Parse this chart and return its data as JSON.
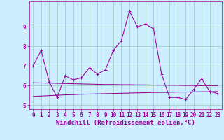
{
  "xlabel": "Windchill (Refroidissement éolien,°C)",
  "background_color": "#cceeff",
  "line_color": "#990099",
  "x": [
    0,
    1,
    2,
    3,
    4,
    5,
    6,
    7,
    8,
    9,
    10,
    11,
    12,
    13,
    14,
    15,
    16,
    17,
    18,
    19,
    20,
    21,
    22,
    23
  ],
  "line1": [
    7.0,
    7.8,
    6.2,
    5.4,
    6.5,
    6.3,
    6.4,
    6.9,
    6.6,
    6.8,
    7.8,
    8.3,
    9.8,
    9.0,
    9.15,
    8.9,
    6.6,
    5.4,
    5.4,
    5.3,
    5.8,
    6.35,
    5.7,
    5.6
  ],
  "line2": [
    6.15,
    6.14,
    6.13,
    6.12,
    6.11,
    6.1,
    6.09,
    6.08,
    6.07,
    6.06,
    6.06,
    6.05,
    6.05,
    6.04,
    6.04,
    6.03,
    6.03,
    6.02,
    6.02,
    6.01,
    6.01,
    6.0,
    6.0,
    6.0
  ],
  "line3": [
    5.45,
    5.47,
    5.49,
    5.51,
    5.53,
    5.54,
    5.56,
    5.57,
    5.58,
    5.59,
    5.6,
    5.61,
    5.62,
    5.63,
    5.64,
    5.65,
    5.65,
    5.66,
    5.67,
    5.67,
    5.68,
    5.69,
    5.69,
    5.7
  ],
  "ylim": [
    4.8,
    10.3
  ],
  "xlim": [
    -0.5,
    23.5
  ],
  "yticks": [
    5,
    6,
    7,
    8,
    9
  ],
  "xticks": [
    0,
    1,
    2,
    3,
    4,
    5,
    6,
    7,
    8,
    9,
    10,
    11,
    12,
    13,
    14,
    15,
    16,
    17,
    18,
    19,
    20,
    21,
    22,
    23
  ],
  "grid_color": "#99ccbb",
  "tick_fontsize": 5.5,
  "label_fontsize": 6.5,
  "linewidth": 0.75,
  "marker_size": 2.5
}
